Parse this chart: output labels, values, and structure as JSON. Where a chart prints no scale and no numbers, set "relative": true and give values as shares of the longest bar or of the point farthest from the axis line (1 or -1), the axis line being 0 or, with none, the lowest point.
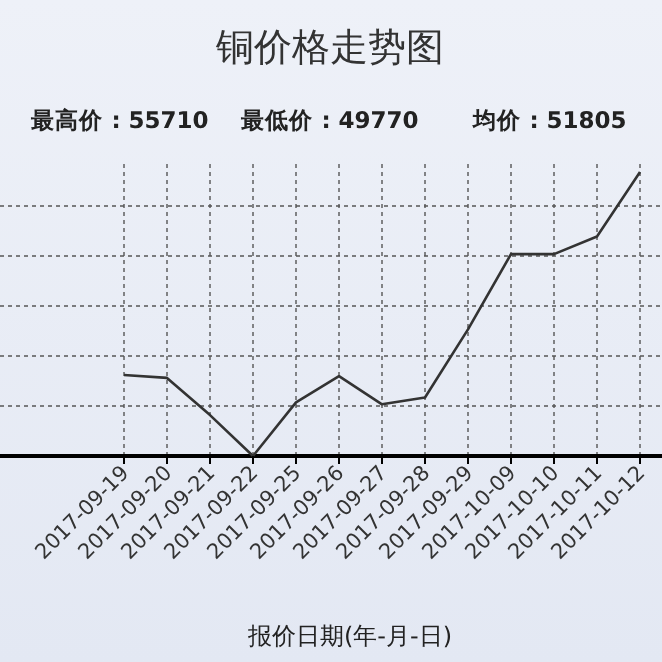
{
  "chart_data": {
    "type": "line",
    "title": "铜价格走势图",
    "annotations": [
      "最高价 : 55710",
      "最低价 : 49770",
      "均价 : 51805"
    ],
    "xlabel": "报价日期(年-月-日)",
    "categories": [
      "2017-09-19",
      "2017-09-20",
      "2017-09-21",
      "2017-09-22",
      "2017-09-25",
      "2017-09-26",
      "2017-09-27",
      "2017-09-28",
      "2017-09-29",
      "2017-10-09",
      "2017-10-10",
      "2017-10-11",
      "2017-10-12"
    ],
    "relative": true,
    "series": [
      {
        "color": "#333333",
        "values": [
          0.285,
          0.275,
          0.144,
          0,
          0.189,
          0.281,
          0.182,
          0.206,
          0.446,
          0.711,
          0.711,
          0.773,
          1
        ]
      }
    ],
    "grid": true,
    "marker": "none",
    "line_style": "solid"
  }
}
